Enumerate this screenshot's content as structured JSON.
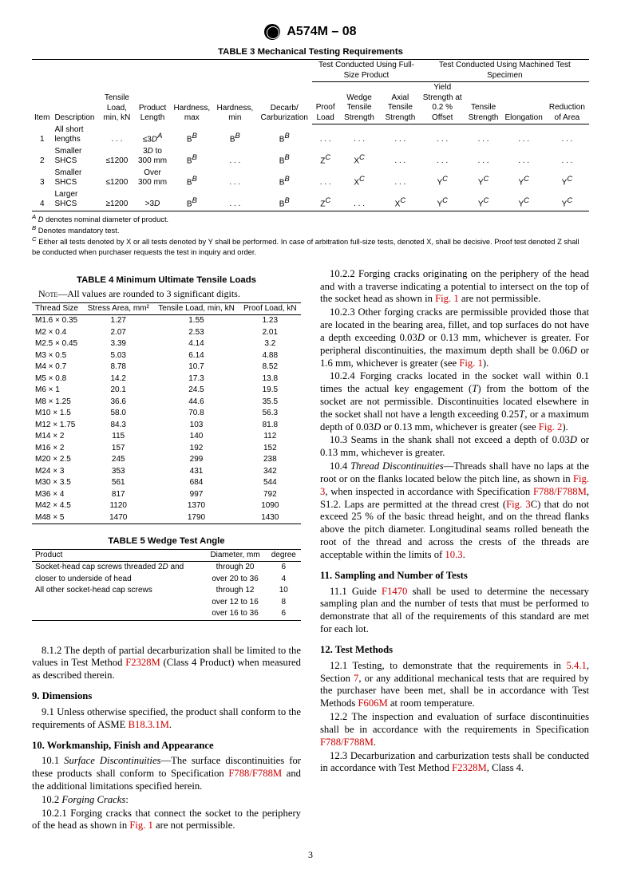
{
  "header": {
    "standard": "A574M – 08"
  },
  "table3": {
    "title": "TABLE 3  Mechanical Testing Requirements",
    "group1": "Test Conducted Using Full-Size Product",
    "group2": "Test Conducted Using Machined Test Specimen",
    "headers": [
      "Item",
      "Description",
      "Tensile Load, min, kN",
      "Product Length",
      "Hardness, max",
      "Hardness, min",
      "Decarb/ Carburization",
      "Proof Load",
      "Wedge Tensile Strength",
      "Axial Tensile Strength",
      "Yield Strength at 0.2 % Offset",
      "Tensile Strength",
      "Elongation",
      "Reduction of Area"
    ],
    "rows": [
      [
        "1",
        "All short lengths",
        ". . .",
        "≤3D",
        "B",
        "B",
        "B",
        ". . .",
        ". . .",
        ". . .",
        ". . .",
        ". . .",
        ". . .",
        ". . ."
      ],
      [
        "2",
        "Smaller SHCS",
        "≤1200",
        "3D to 300 mm",
        "B",
        ". . .",
        "B",
        "Z",
        "X",
        ". . .",
        ". . .",
        ". . .",
        ". . .",
        ". . ."
      ],
      [
        "3",
        "Smaller SHCS",
        "≤1200",
        "Over 300 mm",
        "B",
        ". . .",
        "B",
        ". . .",
        "X",
        ". . .",
        "Y",
        "Y",
        "Y",
        "Y"
      ],
      [
        "4",
        "Larger SHCS",
        "≥1200",
        ">3D",
        "B",
        ". . .",
        "B",
        "Z",
        ". . .",
        "X",
        "Y",
        "Y",
        "Y",
        "Y"
      ]
    ],
    "fnA": "D denotes nominal diameter of product.",
    "fnB": "Denotes mandatory test.",
    "fnC": "Either all tests denoted by X or all tests denoted by Y shall be performed. In case of arbitration full-size tests, denoted X, shall be decisive. Proof test denoted Z shall be conducted when purchaser requests the test in inquiry and order."
  },
  "table4": {
    "title": "TABLE 4  Minimum Ultimate Tensile Loads",
    "note": "All values are rounded to 3 significant digits.",
    "headers": [
      "Thread Size",
      "Stress Area, mm²",
      "Tensile Load, min, kN",
      "Proof Load, kN"
    ],
    "rows": [
      [
        "M1.6 × 0.35",
        "1.27",
        "1.55",
        "1.23"
      ],
      [
        "M2 × 0.4",
        "2.07",
        "2.53",
        "2.01"
      ],
      [
        "M2.5 × 0.45",
        "3.39",
        "4.14",
        "3.2"
      ],
      [
        "M3 × 0.5",
        "5.03",
        "6.14",
        "4.88"
      ],
      [
        "M4 × 0.7",
        "8.78",
        "10.7",
        "8.52"
      ],
      [
        "M5 × 0.8",
        "14.2",
        "17.3",
        "13.8"
      ],
      [
        "M6 × 1",
        "20.1",
        "24.5",
        "19.5"
      ],
      [
        "M8 × 1.25",
        "36.6",
        "44.6",
        "35.5"
      ],
      [
        "M10 × 1.5",
        "58.0",
        "70.8",
        "56.3"
      ],
      [
        "M12 × 1.75",
        "84.3",
        "103",
        "81.8"
      ],
      [
        "M14 × 2",
        "115",
        "140",
        "112"
      ],
      [
        "M16 × 2",
        "157",
        "192",
        "152"
      ],
      [
        "M20 × 2.5",
        "245",
        "299",
        "238"
      ],
      [
        "M24 × 3",
        "353",
        "431",
        "342"
      ],
      [
        "M30 × 3.5",
        "561",
        "684",
        "544"
      ],
      [
        "M36 × 4",
        "817",
        "997",
        "792"
      ],
      [
        "M42 × 4.5",
        "1120",
        "1370",
        "1090"
      ],
      [
        "M48 × 5",
        "1470",
        "1790",
        "1430"
      ]
    ]
  },
  "table5": {
    "title": "TABLE 5  Wedge Test Angle",
    "headers": [
      "Product",
      "Diameter, mm",
      "degree"
    ],
    "rows": [
      [
        "Socket-head cap screws threaded 2D and",
        "through 20",
        "6"
      ],
      [
        "closer to underside of head",
        "over 20 to 36",
        "4"
      ],
      [
        "All other socket-head cap screws",
        "through 12",
        "10"
      ],
      [
        "",
        "over 12 to 16",
        "8"
      ],
      [
        "",
        "over 16 to 36",
        "6"
      ]
    ]
  },
  "body": {
    "p812a": "8.1.2 The depth of partial decarburization shall be limited to the values in Test Method ",
    "p812link": "F2328M",
    "p812b": " (Class 4 Product) when measured as described therein.",
    "s9": "9. Dimensions",
    "p91a": "9.1 Unless otherwise specified, the product shall conform to the requirements of ASME ",
    "p91link": "B18.3.1M",
    "p91b": ".",
    "s10": "10. Workmanship, Finish and Appearance",
    "p101a": "10.1 ",
    "p101i": "Surface Discontinuities",
    "p101b": "—The surface discontinuities for these products shall conform to Specification ",
    "p101link": "F788/F788M",
    "p101c": " and the additional limitations specified herein.",
    "p102": "10.2 ",
    "p102i": "Forging Cracks",
    "p102b": ":",
    "p1021a": "10.2.1 Forging cracks that connect the socket to the periphery of the head as shown in ",
    "p1021link": "Fig. 1",
    "p1021b": " are not permissible.",
    "p1022a": "10.2.2 Forging cracks originating on the periphery of the head and with a traverse indicating a potential to intersect on the top of the socket head as shown in ",
    "p1022link": "Fig. 1",
    "p1022b": " are not permissible.",
    "p1023a": "10.2.3 Other forging cracks are permissible provided those that are located in the bearing area, fillet, and top surfaces do not have a depth exceeding 0.03",
    "p1023D": "D",
    "p1023b": " or 0.13 mm, whichever is greater. For peripheral discontinuities, the maximum depth shall be 0.06",
    "p1023c": " or 1.6 mm, whichever is greater (see ",
    "p1023link": "Fig. 1",
    "p1023d": ").",
    "p1024a": "10.2.4 Forging cracks located in the socket wall within 0.1 times the actual key engagement (",
    "p1024T": "T",
    "p1024b": ") from the bottom of the socket are not permissible. Discontinuities located elsewhere in the socket shall not have a length exceeding 0.25",
    "p1024c": ", or a maximum depth of 0.03",
    "p1024d": " or 0.13 mm, whichever is greater (see ",
    "p1024link": "Fig. 2",
    "p1024e": ").",
    "p103a": "10.3 Seams in the shank shall not exceed a depth of 0.03",
    "p103b": " or 0.13 mm, whichever is greater.",
    "p104a": "10.4 ",
    "p104i": "Thread Discontinuities",
    "p104b": "—Threads shall have no laps at the root or on the flanks located below the pitch line, as shown in ",
    "p104link1": "Fig. 3",
    "p104c": ", when inspected in accordance with Specification ",
    "p104link2": "F788/F788M",
    "p104d": ", S1.2. Laps are permitted at the thread crest (",
    "p104link3": "Fig. 3",
    "p104e": "C) that do not exceed 25 % of the basic thread height, and on the thread flanks above the pitch diameter. Longitudinal seams rolled beneath the root of the thread and across the crests of the threads are acceptable within the limits of ",
    "p104link4": "10.3",
    "p104f": ".",
    "s11": "11. Sampling and Number of Tests",
    "p111a": "11.1 Guide ",
    "p111link": "F1470",
    "p111b": " shall be used to determine the necessary sampling plan and the number of tests that must be performed to demonstrate that all of the requirements of this standard are met for each lot.",
    "s12": "12. Test Methods",
    "p121a": "12.1 Testing, to demonstrate that the requirements in ",
    "p121link1": "5.4.1",
    "p121b": ", Section ",
    "p121link2": "7",
    "p121c": ", or any additional mechanical tests that are required by the purchaser have been met, shall be in accordance with Test Methods ",
    "p121link3": "F606M",
    "p121d": " at room temperature.",
    "p122a": "12.2 The inspection and evaluation of surface discontinuities shall be in accordance with the requirements in Specification ",
    "p122link": "F788/F788M",
    "p122b": ".",
    "p123a": "12.3 Decarburization and carburization tests shall be conducted in accordance with Test Method ",
    "p123link": "F2328M",
    "p123b": ", Class 4."
  },
  "pagenum": "3"
}
